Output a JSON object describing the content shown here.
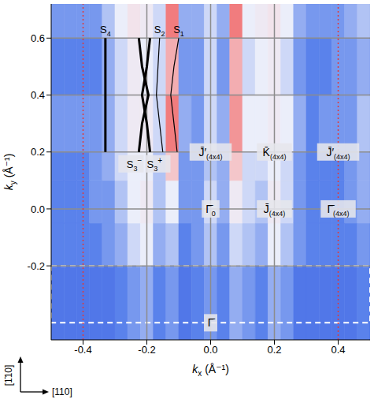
{
  "chart_data": {
    "type": "heatmap",
    "xlabel": {
      "symbol": "k",
      "subscript": "x",
      "unit": "(Å⁻¹)"
    },
    "ylabel": {
      "symbol": "k",
      "subscript": "y",
      "unit": "(Å⁻¹)"
    },
    "xlim": [
      -0.5,
      0.5
    ],
    "xticks": [
      -0.4,
      -0.2,
      {
        "value": 0,
        "label": "0.0"
      },
      0.2,
      0.4
    ],
    "ylim": [
      -0.46,
      0.72
    ],
    "yticks": [
      -0.2,
      {
        "value": 0,
        "label": "0.0"
      },
      0.2,
      0.4,
      0.6
    ],
    "grid": true,
    "kx_edges": [
      -0.5,
      -0.46,
      -0.42,
      -0.38,
      -0.34,
      -0.3,
      -0.26,
      -0.22,
      -0.18,
      -0.14,
      -0.1,
      -0.06,
      -0.02,
      0.02,
      0.06,
      0.1,
      0.14,
      0.18,
      0.22,
      0.26,
      0.3,
      0.34,
      0.38,
      0.42,
      0.46,
      0.5
    ],
    "ky_edges": [
      -0.46,
      -0.2,
      -0.05,
      0.1,
      0.2,
      0.4,
      0.6,
      0.72
    ],
    "color_range": [
      0,
      1
    ],
    "cells": [
      [
        0.3,
        0.3,
        0.3,
        0.3,
        0.3,
        0.35,
        0.4,
        0.45,
        0.35,
        0.4,
        0.3,
        0.35,
        0.4,
        0.35,
        0.45,
        0.4,
        0.35,
        0.45,
        0.4,
        0.3,
        0.3,
        0.3,
        0.3,
        0.3,
        0.35
      ],
      [
        0.35,
        0.35,
        0.35,
        0.35,
        0.4,
        0.45,
        0.55,
        0.6,
        0.45,
        0.5,
        0.35,
        0.4,
        0.5,
        0.4,
        0.55,
        0.5,
        0.45,
        0.6,
        0.5,
        0.4,
        0.35,
        0.35,
        0.35,
        0.35,
        0.4
      ],
      [
        0.35,
        0.35,
        0.35,
        0.4,
        0.4,
        0.5,
        0.6,
        0.65,
        0.5,
        0.6,
        0.4,
        0.4,
        0.55,
        0.45,
        0.65,
        0.55,
        0.5,
        0.65,
        0.55,
        0.4,
        0.35,
        0.35,
        0.35,
        0.4,
        0.45
      ],
      [
        0.35,
        0.35,
        0.35,
        0.4,
        0.45,
        0.55,
        0.6,
        0.6,
        0.5,
        0.8,
        0.4,
        0.4,
        0.5,
        0.45,
        0.8,
        0.55,
        0.55,
        0.6,
        0.55,
        0.4,
        0.35,
        0.35,
        0.35,
        0.4,
        0.45
      ],
      [
        0.4,
        0.4,
        0.4,
        0.4,
        0.45,
        0.55,
        0.65,
        0.65,
        0.55,
        0.95,
        0.45,
        0.4,
        0.55,
        0.45,
        0.9,
        0.6,
        0.6,
        0.65,
        0.6,
        0.45,
        0.35,
        0.4,
        0.4,
        0.4,
        0.5
      ],
      [
        0.35,
        0.35,
        0.35,
        0.35,
        0.45,
        0.55,
        0.65,
        0.6,
        0.55,
        0.85,
        0.4,
        0.4,
        0.55,
        0.4,
        0.85,
        0.55,
        0.6,
        0.65,
        0.55,
        0.4,
        0.35,
        0.35,
        0.4,
        0.4,
        0.45
      ],
      [
        0.4,
        0.4,
        0.4,
        0.4,
        0.5,
        0.6,
        0.7,
        0.65,
        0.55,
        0.95,
        0.45,
        0.45,
        0.55,
        0.45,
        0.95,
        0.6,
        0.65,
        0.7,
        0.6,
        0.45,
        0.4,
        0.4,
        0.4,
        0.45,
        0.5
      ]
    ],
    "zone_boundaries_kx": [
      -0.4,
      0.4
    ],
    "dashed_box_ky": [
      -0.4,
      -0.2
    ],
    "curves": [
      {
        "symbol": "S",
        "subscript": "4",
        "ky": [
          0.2,
          0.3,
          0.4,
          0.5,
          0.6
        ],
        "kx": [
          -0.33,
          -0.33,
          -0.33,
          -0.33,
          -0.33
        ]
      },
      {
        "symbol": "S",
        "subscript": "3",
        "superscript": "−",
        "ky": [
          0.2,
          0.3,
          0.4,
          0.5,
          0.6
        ],
        "kx": [
          -0.225,
          -0.215,
          -0.195,
          -0.215,
          -0.225
        ]
      },
      {
        "symbol": "S",
        "subscript": "3",
        "superscript": "+",
        "ky": [
          0.2,
          0.3,
          0.4,
          0.5,
          0.6
        ],
        "kx": [
          -0.19,
          -0.2,
          -0.215,
          -0.2,
          -0.19
        ]
      },
      {
        "symbol": "S",
        "subscript": "2",
        "ky": [
          0.2,
          0.3,
          0.4,
          0.5,
          0.6
        ],
        "kx": [
          -0.15,
          -0.16,
          -0.17,
          -0.165,
          -0.16
        ]
      },
      {
        "symbol": "S",
        "subscript": "1",
        "ky": [
          0.2,
          0.3,
          0.4,
          0.5,
          0.6
        ],
        "kx": [
          -0.105,
          -0.115,
          -0.125,
          -0.115,
          -0.1
        ]
      }
    ],
    "points": [
      {
        "symbol": "J̄′",
        "subscript": "(4x4)",
        "kx": 0,
        "ky": 0.2
      },
      {
        "symbol": "K̄",
        "subscript": "(4x4)",
        "kx": 0.2,
        "ky": 0.2
      },
      {
        "symbol": "J̄′",
        "subscript": "(4x4)",
        "kx": 0.4,
        "ky": 0.2
      },
      {
        "symbol": "Γ̄",
        "subscript": "0",
        "kx": 0,
        "ky": 0
      },
      {
        "symbol": "J̄",
        "subscript": "(4x4)",
        "kx": 0.2,
        "ky": 0
      },
      {
        "symbol": "Γ̄",
        "subscript": "(4x4)",
        "kx": 0.4,
        "ky": 0
      },
      {
        "symbol": "Γ̄",
        "kx": 0,
        "ky": -0.4
      }
    ],
    "directions": {
      "vertical": "[1̄10]",
      "horizontal": "[110]"
    }
  }
}
